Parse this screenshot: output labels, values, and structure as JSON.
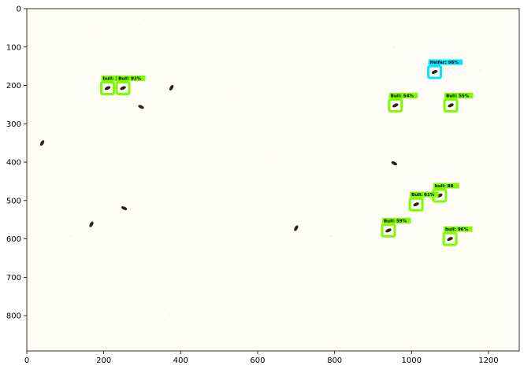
{
  "figure": {
    "x_ticks": [
      "0",
      "200",
      "400",
      "600",
      "800",
      "1000",
      "1200"
    ],
    "y_ticks": [
      "0",
      "100",
      "200",
      "300",
      "400",
      "500",
      "600",
      "700",
      "800"
    ]
  },
  "colors": {
    "bull_box": "#7cfc00",
    "heifer_box": "#00e5ff",
    "label_text": "#000000",
    "axis": "#000000",
    "background": "#fffdf6"
  },
  "detections": [
    {
      "label": "bull: 3",
      "x": 210,
      "y": 207,
      "class": "bull"
    },
    {
      "label": "Bull: 93%",
      "x": 250,
      "y": 207,
      "class": "bull"
    },
    {
      "label": "Heifer: 96%",
      "x": 1060,
      "y": 165,
      "class": "heifer"
    },
    {
      "label": "Bull: 54%",
      "x": 958,
      "y": 252,
      "class": "bull"
    },
    {
      "label": "Bull: 55%",
      "x": 1102,
      "y": 252,
      "class": "bull"
    },
    {
      "label": "bull: 88",
      "x": 1073,
      "y": 487,
      "class": "bull"
    },
    {
      "label": "Bull: 61%",
      "x": 1012,
      "y": 510,
      "class": "bull"
    },
    {
      "label": "Bull: 59%",
      "x": 940,
      "y": 578,
      "class": "bull"
    },
    {
      "label": "bull: 96%",
      "x": 1100,
      "y": 600,
      "class": "bull"
    }
  ],
  "undetected_insects": [
    {
      "x": 297,
      "y": 256
    },
    {
      "x": 376,
      "y": 206
    },
    {
      "x": 40,
      "y": 350
    },
    {
      "x": 253,
      "y": 520
    },
    {
      "x": 168,
      "y": 562
    },
    {
      "x": 955,
      "y": 403
    },
    {
      "x": 700,
      "y": 572
    }
  ]
}
